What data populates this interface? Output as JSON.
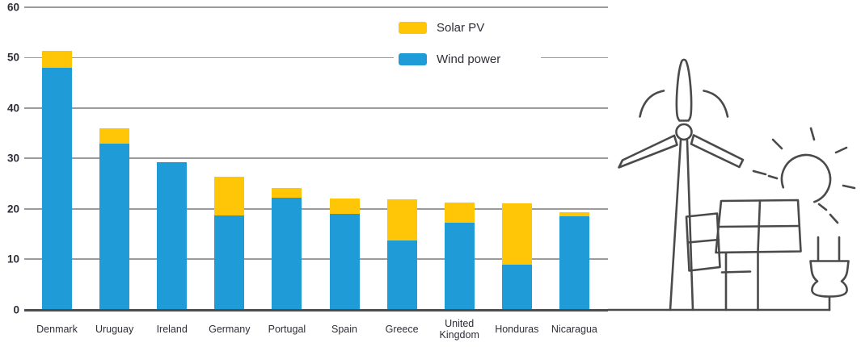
{
  "chart_data": {
    "type": "bar",
    "stacked": true,
    "categories": [
      "Denmark",
      "Uruguay",
      "Ireland",
      "Germany",
      "Portugal",
      "Spain",
      "Greece",
      "United Kingdom",
      "Honduras",
      "Nicaragua"
    ],
    "series": [
      {
        "name": "Solar PV",
        "color": "#FFC608",
        "values": [
          3.3,
          2.9,
          0,
          7.6,
          1.9,
          3,
          8.2,
          4,
          12.2,
          0.8
        ]
      },
      {
        "name": "Wind power",
        "color": "#1F9BD7",
        "values": [
          48,
          33,
          29.3,
          18.7,
          22.2,
          19,
          13.7,
          17.2,
          8.9,
          18.5
        ]
      }
    ],
    "stack_bottom_to_top": [
      "Wind power",
      "Solar PV"
    ],
    "ylim": [
      0,
      60
    ],
    "y_ticks": [
      0,
      10,
      20,
      30,
      40,
      50,
      60
    ],
    "xlabel": "",
    "ylabel": "",
    "grid": "horizontal",
    "legend_position": "top-center"
  },
  "legend": {
    "items": [
      {
        "label": "Solar PV",
        "color": "#FFC608"
      },
      {
        "label": "Wind power",
        "color": "#1F9BD7"
      }
    ]
  },
  "palette": {
    "wind_bar": "#1F9BD7",
    "solar_bar": "#FFC608",
    "grid_line": "#9B9B9B",
    "axis_line": "#4D4D4D",
    "text": "#2E2E38",
    "illustration_stroke": "#4A4A4A"
  },
  "illustration": {
    "icons": [
      "wind-turbine-icon",
      "solar-panel-icon",
      "sun-icon",
      "power-plug-icon"
    ]
  }
}
